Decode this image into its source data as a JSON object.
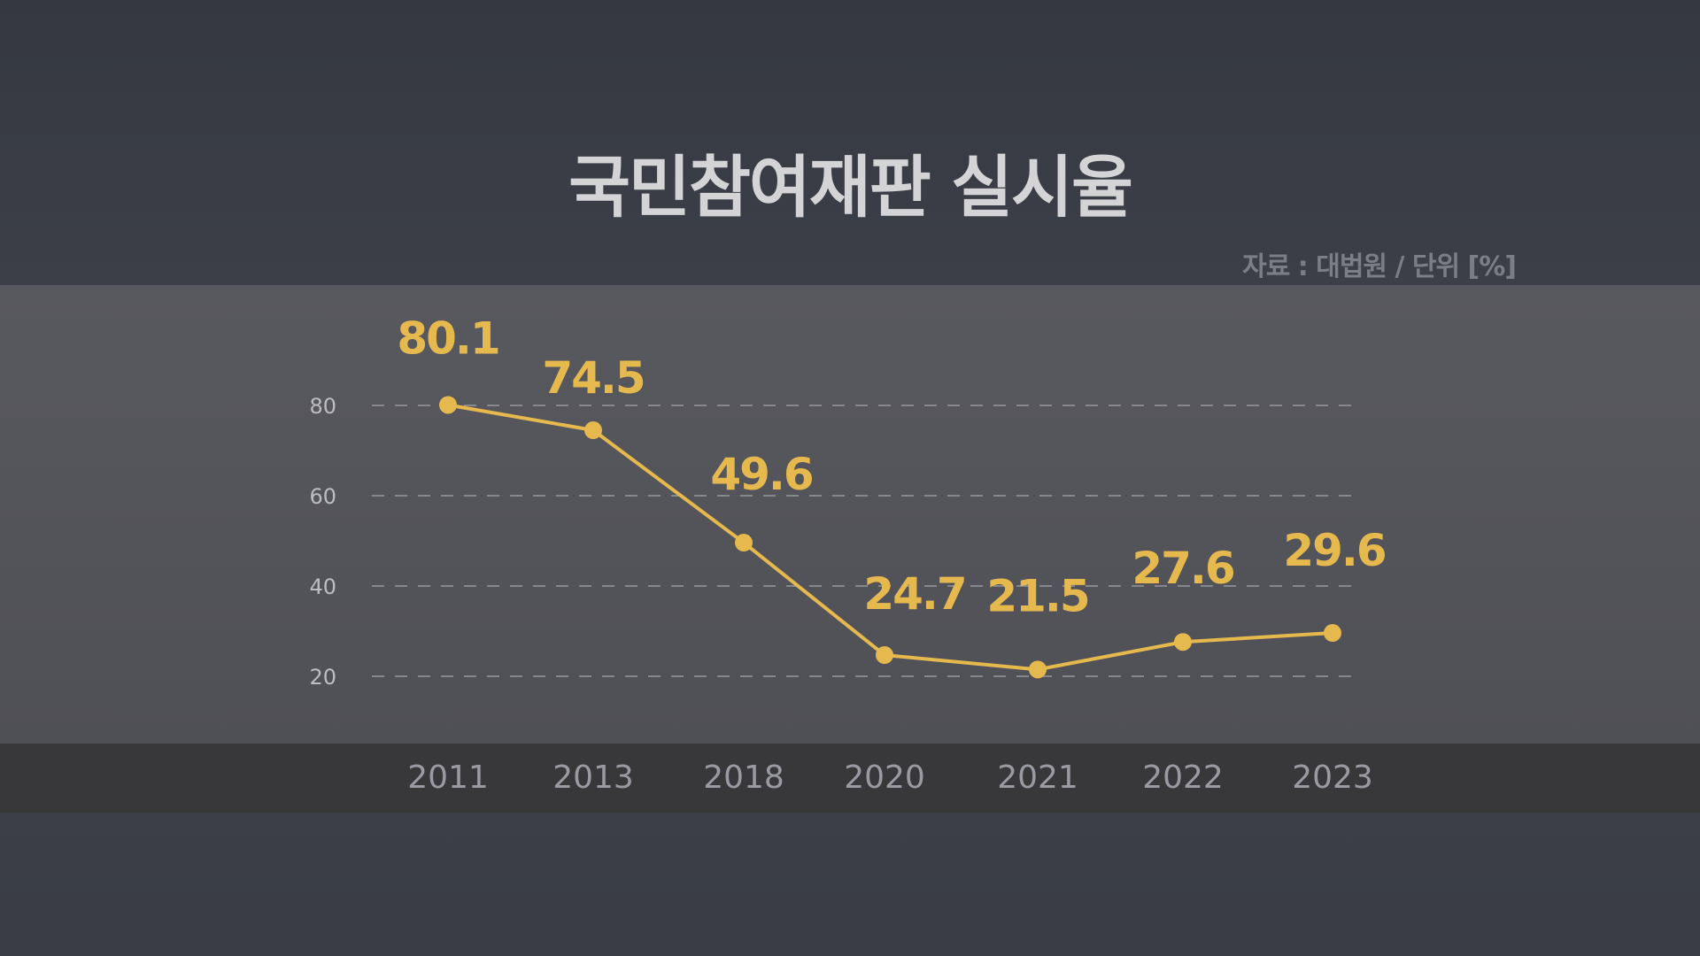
{
  "title": "국민참여재판 실시율",
  "source": "자료 : 대법원 / 단위 [%]",
  "colors": {
    "line": "#e6b94f",
    "year": "#9a9ba2",
    "tick": "#bdbdc1",
    "grid": "#a9aaae"
  },
  "chart_data": {
    "type": "line",
    "title": "국민참여재판 실시율",
    "xlabel": "",
    "ylabel": "%",
    "categories": [
      "2011",
      "2013",
      "2018",
      "2020",
      "2021",
      "2022",
      "2023"
    ],
    "values": [
      80.1,
      74.5,
      49.6,
      24.7,
      21.5,
      27.6,
      29.6
    ],
    "value_labels": [
      "80.1",
      "74.5",
      "49.6",
      "24.7",
      "21.5",
      "27.6",
      "29.6"
    ],
    "yticks": [
      20,
      40,
      60,
      80
    ],
    "ylim": [
      20,
      80
    ],
    "grid": true
  }
}
